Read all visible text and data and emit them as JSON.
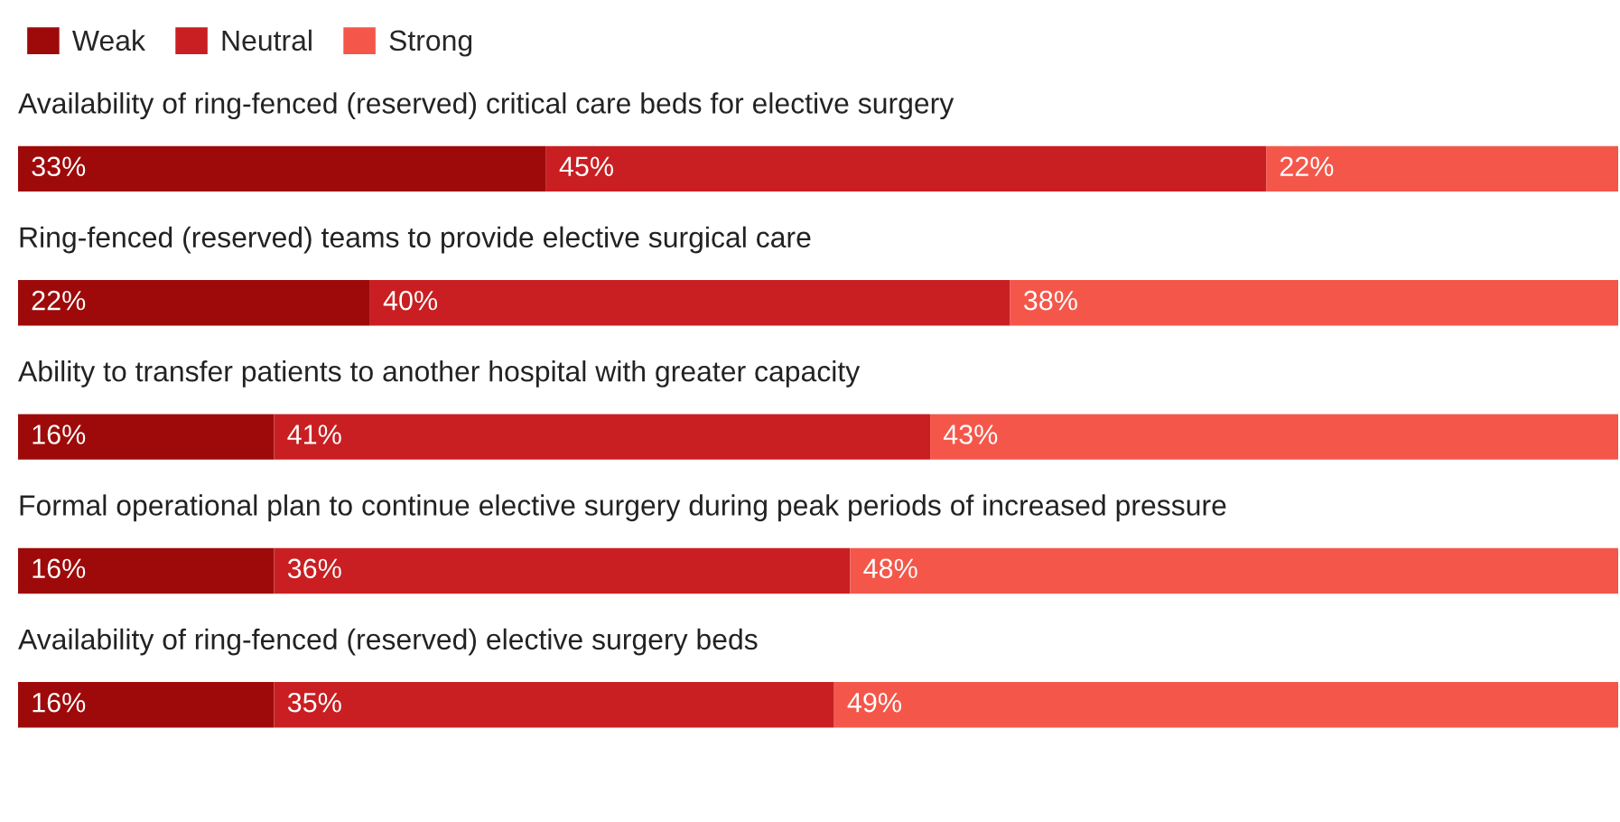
{
  "chart_data": {
    "type": "bar",
    "orientation": "horizontal",
    "stacked": true,
    "legend": "top left",
    "categories": [
      "Availability of ring-fenced (reserved) critical care beds for elective surgery",
      "Ring-fenced (reserved) teams to provide elective surgical care",
      "Ability to transfer patients to another hospital with greater capacity",
      "Formal operational plan to continue elective surgery during peak periods of increased pressure",
      "Availability of ring-fenced (reserved) elective surgery beds"
    ],
    "series": [
      {
        "name": "Weak",
        "color": "#9e0a0a",
        "values": [
          33,
          22,
          16,
          16,
          16
        ],
        "value_labels": [
          "33%",
          "22%",
          "16%",
          "16%",
          "16%"
        ]
      },
      {
        "name": "Neutral",
        "color": "#c91f22",
        "values": [
          45,
          40,
          41,
          36,
          35
        ],
        "value_labels": [
          "45%",
          "40%",
          "41%",
          "36%",
          "35%"
        ]
      },
      {
        "name": "Strong",
        "color": "#f4574a",
        "values": [
          22,
          38,
          43,
          48,
          49
        ],
        "value_labels": [
          "22%",
          "38%",
          "43%",
          "48%",
          "49%"
        ]
      }
    ]
  }
}
